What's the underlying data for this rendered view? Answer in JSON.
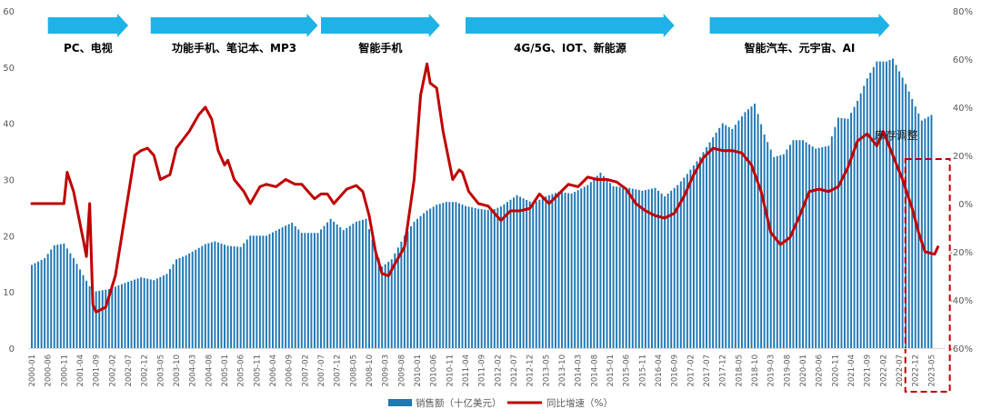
{
  "chart_data": {
    "type": "bar+line",
    "title": "",
    "left_axis": {
      "ylim": [
        0,
        60
      ],
      "ticks": [
        "0",
        "10",
        "20",
        "30",
        "40",
        "50",
        "60"
      ]
    },
    "right_axis": {
      "ylim": [
        -60,
        80
      ],
      "ticks": [
        "-60%",
        "-40%",
        "-20%",
        "0%",
        "20%",
        "40%",
        "60%",
        "80%"
      ]
    },
    "x_tick_labels": [
      "2000-01",
      "2000-06",
      "2000-11",
      "2001-04",
      "2001-09",
      "2002-02",
      "2002-07",
      "2002-12",
      "2003-05",
      "2003-10",
      "2004-03",
      "2004-08",
      "2005-01",
      "2005-06",
      "2005-11",
      "2006-04",
      "2006-09",
      "2007-02",
      "2007-07",
      "2007-12",
      "2008-05",
      "2008-10",
      "2009-03",
      "2009-08",
      "2010-01",
      "2010-06",
      "2010-11",
      "2011-04",
      "2011-09",
      "2012-02",
      "2012-07",
      "2012-12",
      "2013-05",
      "2013-10",
      "2014-03",
      "2014-08",
      "2015-01",
      "2015-06",
      "2015-11",
      "2016-04",
      "2016-09",
      "2017-02",
      "2017-07",
      "2017-12",
      "2018-05",
      "2018-10",
      "2019-03",
      "2019-08",
      "2020-01",
      "2020-06",
      "2020-11",
      "2021-04",
      "2021-09",
      "2022-02",
      "2022-07",
      "2022-12",
      "2023-05"
    ],
    "bar_series": {
      "name": "销售额（十亿美元）",
      "color": "#1f77b4",
      "anchors": [
        [
          "2000-01",
          14.8
        ],
        [
          "2000-05",
          16
        ],
        [
          "2000-08",
          18.3
        ],
        [
          "2000-11",
          18.6
        ],
        [
          "2001-02",
          16
        ],
        [
          "2001-05",
          13
        ],
        [
          "2001-08",
          10
        ],
        [
          "2001-10",
          10.2
        ],
        [
          "2002-01",
          10.5
        ],
        [
          "2002-06",
          11.6
        ],
        [
          "2002-11",
          12.6
        ],
        [
          "2003-03",
          12.1
        ],
        [
          "2003-07",
          13.2
        ],
        [
          "2003-10",
          15.8
        ],
        [
          "2004-01",
          16.5
        ],
        [
          "2004-07",
          18.5
        ],
        [
          "2004-10",
          19
        ],
        [
          "2005-02",
          18.2
        ],
        [
          "2005-06",
          18
        ],
        [
          "2005-09",
          20
        ],
        [
          "2006-02",
          20
        ],
        [
          "2006-08",
          21.8
        ],
        [
          "2006-10",
          22.3
        ],
        [
          "2007-01",
          20.5
        ],
        [
          "2007-06",
          20.5
        ],
        [
          "2007-10",
          23
        ],
        [
          "2008-02",
          21
        ],
        [
          "2008-06",
          22.5
        ],
        [
          "2008-09",
          23
        ],
        [
          "2008-12",
          17.5
        ],
        [
          "2009-02",
          14.5
        ],
        [
          "2009-05",
          15.8
        ],
        [
          "2009-09",
          20
        ],
        [
          "2009-12",
          22.5
        ],
        [
          "2010-04",
          24.5
        ],
        [
          "2010-07",
          25.5
        ],
        [
          "2010-10",
          26
        ],
        [
          "2011-01",
          26
        ],
        [
          "2011-04",
          25.3
        ],
        [
          "2011-08",
          24.8
        ],
        [
          "2011-12",
          24.5
        ],
        [
          "2012-03",
          25.2
        ],
        [
          "2012-08",
          27.2
        ],
        [
          "2013-01",
          25.8
        ],
        [
          "2013-05",
          27
        ],
        [
          "2013-09",
          27.8
        ],
        [
          "2014-01",
          27.5
        ],
        [
          "2014-06",
          29
        ],
        [
          "2014-10",
          31.2
        ],
        [
          "2015-02",
          28.8
        ],
        [
          "2015-07",
          28.5
        ],
        [
          "2015-11",
          28
        ],
        [
          "2016-03",
          28.5
        ],
        [
          "2016-06",
          27
        ],
        [
          "2016-10",
          29
        ],
        [
          "2017-01",
          31
        ],
        [
          "2017-05",
          34
        ],
        [
          "2017-09",
          37.5
        ],
        [
          "2017-12",
          40
        ],
        [
          "2018-03",
          39
        ],
        [
          "2018-07",
          42
        ],
        [
          "2018-10",
          43.5
        ],
        [
          "2019-01",
          38
        ],
        [
          "2019-04",
          34
        ],
        [
          "2019-07",
          34.5
        ],
        [
          "2019-10",
          37
        ],
        [
          "2020-01",
          37
        ],
        [
          "2020-05",
          35.5
        ],
        [
          "2020-09",
          36
        ],
        [
          "2020-12",
          41
        ],
        [
          "2021-03",
          40.8
        ],
        [
          "2021-06",
          44
        ],
        [
          "2021-09",
          48
        ],
        [
          "2021-12",
          51
        ],
        [
          "2022-03",
          51
        ],
        [
          "2022-05",
          51.5
        ],
        [
          "2022-09",
          47
        ],
        [
          "2022-12",
          43
        ],
        [
          "2023-02",
          40.5
        ],
        [
          "2023-05",
          41.5
        ]
      ]
    },
    "line_series": {
      "name": "同比增速（%）",
      "color": "#c00000",
      "anchors": [
        [
          "2000-01",
          0
        ],
        [
          "2000-11",
          0
        ],
        [
          "2000-12",
          13
        ],
        [
          "2001-02",
          5
        ],
        [
          "2001-05",
          -15
        ],
        [
          "2001-06",
          -22
        ],
        [
          "2001-07",
          0
        ],
        [
          "2001-08",
          -42
        ],
        [
          "2001-09",
          -45
        ],
        [
          "2001-12",
          -43
        ],
        [
          "2002-03",
          -30
        ],
        [
          "2002-06",
          -5
        ],
        [
          "2002-09",
          20
        ],
        [
          "2002-11",
          22
        ],
        [
          "2003-01",
          23
        ],
        [
          "2003-03",
          20
        ],
        [
          "2003-05",
          10
        ],
        [
          "2003-08",
          12
        ],
        [
          "2003-10",
          23
        ],
        [
          "2004-02",
          30
        ],
        [
          "2004-05",
          37
        ],
        [
          "2004-07",
          40
        ],
        [
          "2004-09",
          35
        ],
        [
          "2004-11",
          22
        ],
        [
          "2005-01",
          16
        ],
        [
          "2005-02",
          18
        ],
        [
          "2005-04",
          10
        ],
        [
          "2005-07",
          5
        ],
        [
          "2005-09",
          0
        ],
        [
          "2005-12",
          7
        ],
        [
          "2006-02",
          8
        ],
        [
          "2006-05",
          7
        ],
        [
          "2006-08",
          10
        ],
        [
          "2006-11",
          8
        ],
        [
          "2007-01",
          8
        ],
        [
          "2007-03",
          5
        ],
        [
          "2007-05",
          2
        ],
        [
          "2007-07",
          4
        ],
        [
          "2007-09",
          4
        ],
        [
          "2007-11",
          0
        ],
        [
          "2008-01",
          3
        ],
        [
          "2008-03",
          6
        ],
        [
          "2008-06",
          7.5
        ],
        [
          "2008-08",
          5
        ],
        [
          "2008-10",
          -5
        ],
        [
          "2008-12",
          -20
        ],
        [
          "2009-02",
          -29
        ],
        [
          "2009-04",
          -30
        ],
        [
          "2009-06",
          -25
        ],
        [
          "2009-09",
          -18
        ],
        [
          "2009-12",
          10
        ],
        [
          "2010-02",
          45
        ],
        [
          "2010-04",
          58
        ],
        [
          "2010-05",
          50
        ],
        [
          "2010-07",
          48
        ],
        [
          "2010-09",
          30
        ],
        [
          "2010-12",
          10
        ],
        [
          "2011-02",
          14
        ],
        [
          "2011-03",
          13
        ],
        [
          "2011-05",
          5
        ],
        [
          "2011-08",
          0
        ],
        [
          "2011-11",
          -1
        ],
        [
          "2012-01",
          -4
        ],
        [
          "2012-03",
          -7
        ],
        [
          "2012-06",
          -3
        ],
        [
          "2012-09",
          -3
        ],
        [
          "2012-12",
          -2
        ],
        [
          "2013-03",
          4
        ],
        [
          "2013-06",
          0
        ],
        [
          "2013-09",
          4
        ],
        [
          "2013-12",
          8
        ],
        [
          "2014-03",
          7
        ],
        [
          "2014-06",
          11
        ],
        [
          "2014-09",
          10
        ],
        [
          "2014-12",
          10
        ],
        [
          "2015-03",
          9
        ],
        [
          "2015-06",
          6
        ],
        [
          "2015-09",
          0
        ],
        [
          "2015-12",
          -3
        ],
        [
          "2016-03",
          -5
        ],
        [
          "2016-06",
          -6
        ],
        [
          "2016-09",
          -4
        ],
        [
          "2016-12",
          3
        ],
        [
          "2017-03",
          12
        ],
        [
          "2017-06",
          19
        ],
        [
          "2017-09",
          23
        ],
        [
          "2017-12",
          22
        ],
        [
          "2018-03",
          22
        ],
        [
          "2018-06",
          21
        ],
        [
          "2018-09",
          16
        ],
        [
          "2018-12",
          5
        ],
        [
          "2019-03",
          -12
        ],
        [
          "2019-06",
          -17
        ],
        [
          "2019-09",
          -14
        ],
        [
          "2019-12",
          -5
        ],
        [
          "2020-03",
          5
        ],
        [
          "2020-06",
          6
        ],
        [
          "2020-09",
          5
        ],
        [
          "2020-12",
          7
        ],
        [
          "2021-03",
          15
        ],
        [
          "2021-06",
          26
        ],
        [
          "2021-09",
          29
        ],
        [
          "2021-12",
          24
        ],
        [
          "2022-02",
          30
        ],
        [
          "2022-05",
          20
        ],
        [
          "2022-08",
          10
        ],
        [
          "2022-11",
          -2
        ],
        [
          "2023-01",
          -12
        ],
        [
          "2023-03",
          -20
        ],
        [
          "2023-06",
          -21
        ],
        [
          "2023-07",
          -18
        ]
      ]
    },
    "phases": [
      {
        "label": "PC、电视",
        "start": "2000-06",
        "end": "2002-07"
      },
      {
        "label": "功能手机、笔记本、MP3",
        "start": "2003-02",
        "end": "2007-06"
      },
      {
        "label": "智能手机",
        "start": "2007-07",
        "end": "2010-08"
      },
      {
        "label": "4G/5G、IOT、新能源",
        "start": "2011-04",
        "end": "2016-09"
      },
      {
        "label": "智能汽车、元宇宙、AI",
        "start": "2017-08",
        "end": "2022-04"
      }
    ],
    "annotation": {
      "label": "库存调整",
      "date": "2022-06",
      "value": 38
    },
    "highlight_box": {
      "start": "2022-10",
      "end": "2023-09",
      "style": "dashed",
      "color": "#c00000"
    },
    "legend": {
      "position": "bottom-center",
      "items": [
        "销售额（十亿美元）",
        "同比增速（%）"
      ]
    },
    "grid": false
  }
}
